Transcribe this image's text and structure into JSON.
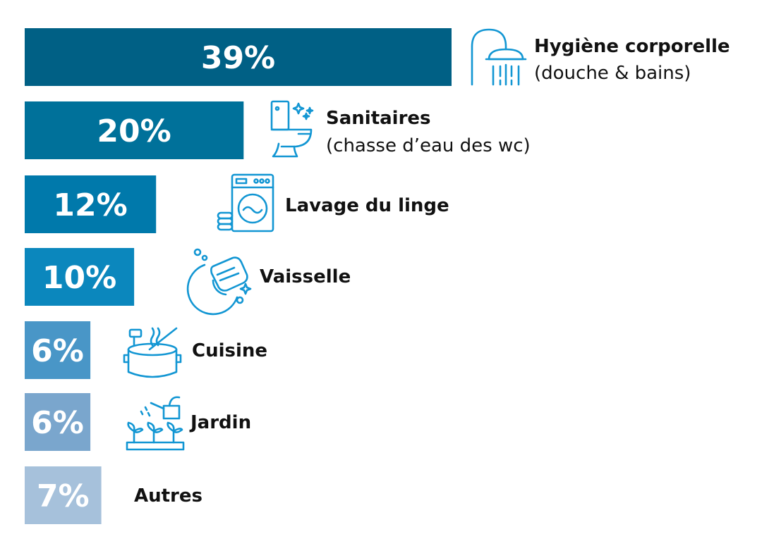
{
  "chart_data": {
    "type": "bar",
    "orientation": "horizontal",
    "categories": [
      "Hygiène corporelle",
      "Sanitaires",
      "Lavage du linge",
      "Vaisselle",
      "Cuisine",
      "Jardin",
      "Autres"
    ],
    "category_details": [
      "(douche & bains)",
      "(chasse d’eau des wc)",
      "",
      "",
      "",
      "",
      ""
    ],
    "values": [
      39,
      20,
      12,
      10,
      6,
      6,
      7
    ],
    "value_labels": [
      "39%",
      "20%",
      "12%",
      "10%",
      "6%",
      "6%",
      "7%"
    ],
    "bar_colors": [
      "#006085",
      "#00719a",
      "#0079ab",
      "#0b87bd",
      "#4996c7",
      "#7aa6cd",
      "#a6c1db"
    ],
    "icon_color": "#1296d3",
    "icons": [
      "shower-icon",
      "toilet-icon",
      "washing-machine-icon",
      "dish-sponge-icon",
      "cooking-pot-icon",
      "watering-can-icon",
      ""
    ],
    "title": "",
    "xlabel": "",
    "ylabel": "",
    "grid": false,
    "legend": "none"
  }
}
